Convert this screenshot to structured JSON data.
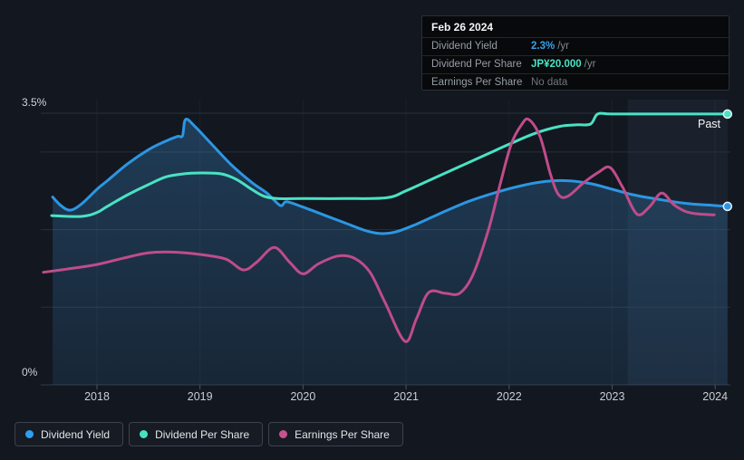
{
  "tooltip": {
    "date": "Feb 26 2024",
    "rows": [
      {
        "label": "Dividend Yield",
        "value": "2.3%",
        "suffix": "/yr",
        "value_color": "#3AA0E8"
      },
      {
        "label": "Dividend Per Share",
        "value": "JP¥20.000",
        "suffix": "/yr",
        "value_color": "#4AE2C4"
      },
      {
        "label": "Earnings Per Share",
        "value": "No data",
        "suffix": "",
        "value_color": "#6F767E"
      }
    ]
  },
  "legend": [
    {
      "label": "Dividend Yield",
      "color": "#2DA0EE"
    },
    {
      "label": "Dividend Per Share",
      "color": "#45E2C2"
    },
    {
      "label": "Earnings Per Share",
      "color": "#C9538F"
    }
  ],
  "colors": {
    "dividend_yield": "#2C96E2",
    "dividend_per_share": "#4AE2C4",
    "earnings_per_share": "#BF4C8A",
    "area_fill": "#3A8CCD",
    "grid": "#27303B",
    "axis_line": "#333B47",
    "band": "rgba(130,175,230,0.07)"
  },
  "chart_data": {
    "type": "line",
    "x_ticks": [
      "2018",
      "2019",
      "2020",
      "2021",
      "2022",
      "2023",
      "2024"
    ],
    "x_tick_years": [
      2018,
      2019,
      2020,
      2021,
      2022,
      2023,
      2024
    ],
    "y_axis": {
      "top_label": "3.5%",
      "bottom_label": "0%",
      "min": 0,
      "max": 3.5,
      "unit": "%",
      "gridlines_pct": [
        0,
        1,
        2,
        3,
        3.5
      ]
    },
    "past_label": "Past",
    "highlight_band": {
      "from_year": 2023.15,
      "to_year": 2024.12
    },
    "legend_position": "bottom-left",
    "note": "Values for all series are read off the 0-3.5% visual axis; latest points per tooltip: yield 2.3%/yr, DPS JP¥20.000/yr, EPS no data",
    "series": [
      {
        "name": "Dividend Yield",
        "color": "#2C96E2",
        "area_fill": true,
        "end_dot": true,
        "points": [
          [
            2017.57,
            2.42
          ],
          [
            2017.65,
            2.31
          ],
          [
            2017.74,
            2.25
          ],
          [
            2017.85,
            2.33
          ],
          [
            2018.0,
            2.52
          ],
          [
            2018.1,
            2.63
          ],
          [
            2018.3,
            2.85
          ],
          [
            2018.5,
            3.03
          ],
          [
            2018.65,
            3.13
          ],
          [
            2018.78,
            3.2
          ],
          [
            2018.83,
            3.21
          ],
          [
            2018.86,
            3.42
          ],
          [
            2018.95,
            3.33
          ],
          [
            2019.1,
            3.12
          ],
          [
            2019.3,
            2.84
          ],
          [
            2019.5,
            2.61
          ],
          [
            2019.65,
            2.47
          ],
          [
            2019.78,
            2.31
          ],
          [
            2019.84,
            2.36
          ],
          [
            2020.0,
            2.29
          ],
          [
            2020.2,
            2.19
          ],
          [
            2020.4,
            2.09
          ],
          [
            2020.6,
            1.99
          ],
          [
            2020.75,
            1.95
          ],
          [
            2020.9,
            1.97
          ],
          [
            2021.1,
            2.07
          ],
          [
            2021.35,
            2.22
          ],
          [
            2021.6,
            2.36
          ],
          [
            2021.85,
            2.47
          ],
          [
            2022.1,
            2.56
          ],
          [
            2022.35,
            2.62
          ],
          [
            2022.57,
            2.63
          ],
          [
            2022.8,
            2.59
          ],
          [
            2023.0,
            2.52
          ],
          [
            2023.2,
            2.45
          ],
          [
            2023.45,
            2.39
          ],
          [
            2023.7,
            2.34
          ],
          [
            2024.0,
            2.31
          ],
          [
            2024.12,
            2.3
          ]
        ]
      },
      {
        "name": "Dividend Per Share",
        "color": "#4AE2C4",
        "area_fill": false,
        "end_dot": true,
        "points": [
          [
            2017.56,
            2.18
          ],
          [
            2017.85,
            2.17
          ],
          [
            2018.0,
            2.22
          ],
          [
            2018.1,
            2.3
          ],
          [
            2018.3,
            2.45
          ],
          [
            2018.5,
            2.58
          ],
          [
            2018.67,
            2.68
          ],
          [
            2018.85,
            2.72
          ],
          [
            2019.0,
            2.73
          ],
          [
            2019.2,
            2.72
          ],
          [
            2019.35,
            2.65
          ],
          [
            2019.5,
            2.52
          ],
          [
            2019.62,
            2.43
          ],
          [
            2019.75,
            2.4
          ],
          [
            2020.0,
            2.4
          ],
          [
            2020.4,
            2.4
          ],
          [
            2020.81,
            2.41
          ],
          [
            2021.0,
            2.5
          ],
          [
            2021.25,
            2.65
          ],
          [
            2021.5,
            2.8
          ],
          [
            2021.75,
            2.95
          ],
          [
            2022.0,
            3.1
          ],
          [
            2022.25,
            3.24
          ],
          [
            2022.49,
            3.33
          ],
          [
            2022.65,
            3.35
          ],
          [
            2022.79,
            3.36
          ],
          [
            2022.86,
            3.49
          ],
          [
            2023.0,
            3.49
          ],
          [
            2023.5,
            3.49
          ],
          [
            2024.0,
            3.49
          ],
          [
            2024.12,
            3.49
          ]
        ]
      },
      {
        "name": "Earnings Per Share",
        "color": "#BF4C8A",
        "area_fill": false,
        "end_dot": false,
        "points": [
          [
            2017.48,
            1.45
          ],
          [
            2017.7,
            1.49
          ],
          [
            2018.0,
            1.55
          ],
          [
            2018.25,
            1.63
          ],
          [
            2018.5,
            1.7
          ],
          [
            2018.73,
            1.71
          ],
          [
            2019.0,
            1.68
          ],
          [
            2019.25,
            1.62
          ],
          [
            2019.42,
            1.48
          ],
          [
            2019.55,
            1.58
          ],
          [
            2019.72,
            1.77
          ],
          [
            2019.87,
            1.58
          ],
          [
            2020.0,
            1.43
          ],
          [
            2020.15,
            1.56
          ],
          [
            2020.34,
            1.66
          ],
          [
            2020.5,
            1.63
          ],
          [
            2020.65,
            1.45
          ],
          [
            2020.8,
            1.05
          ],
          [
            2020.99,
            0.56
          ],
          [
            2021.1,
            0.85
          ],
          [
            2021.22,
            1.19
          ],
          [
            2021.38,
            1.18
          ],
          [
            2021.52,
            1.18
          ],
          [
            2021.65,
            1.42
          ],
          [
            2021.8,
            2.0
          ],
          [
            2021.92,
            2.62
          ],
          [
            2022.02,
            3.1
          ],
          [
            2022.12,
            3.35
          ],
          [
            2022.19,
            3.42
          ],
          [
            2022.3,
            3.2
          ],
          [
            2022.4,
            2.72
          ],
          [
            2022.48,
            2.45
          ],
          [
            2022.57,
            2.43
          ],
          [
            2022.72,
            2.6
          ],
          [
            2022.87,
            2.74
          ],
          [
            2022.98,
            2.8
          ],
          [
            2023.1,
            2.55
          ],
          [
            2023.24,
            2.2
          ],
          [
            2023.36,
            2.29
          ],
          [
            2023.48,
            2.47
          ],
          [
            2023.6,
            2.32
          ],
          [
            2023.72,
            2.23
          ],
          [
            2023.85,
            2.2
          ],
          [
            2023.99,
            2.19
          ]
        ]
      }
    ]
  }
}
